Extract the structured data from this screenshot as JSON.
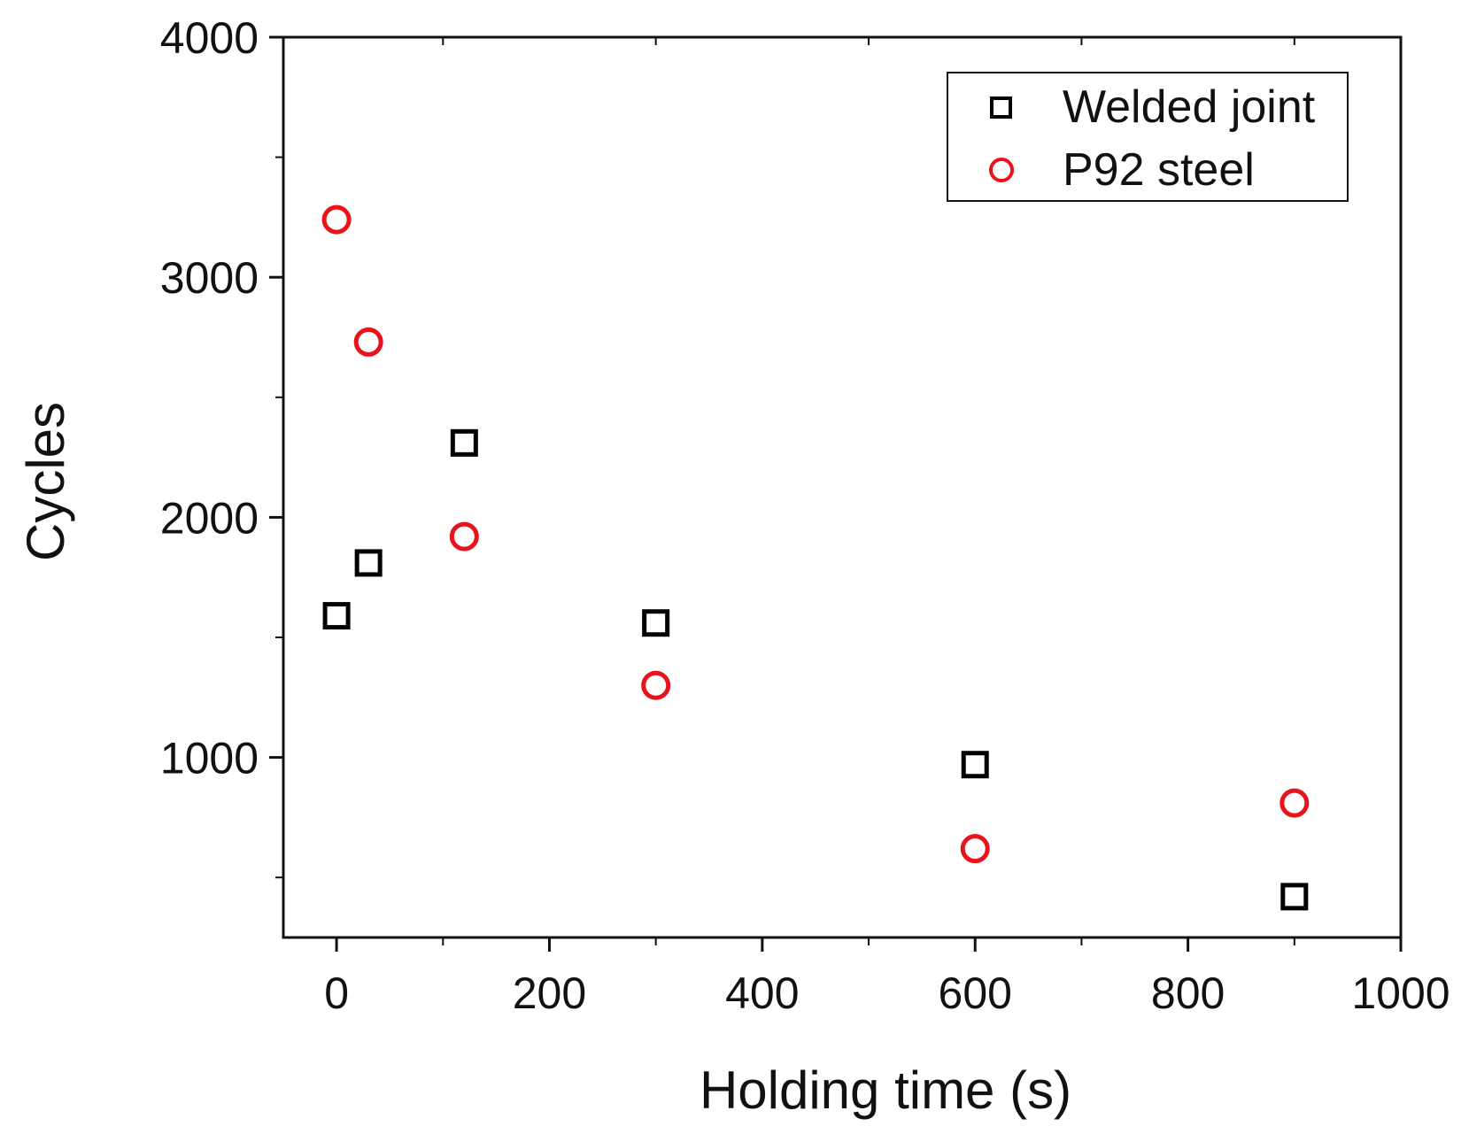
{
  "chart_data": {
    "type": "scatter",
    "title": "",
    "xlabel": "Holding time (s)",
    "ylabel": "Cycles",
    "xlim": [
      -50,
      1000
    ],
    "ylim": [
      250,
      4000
    ],
    "x_major_ticks": [
      0,
      200,
      400,
      600,
      800,
      1000
    ],
    "x_minor_ticks": [
      100,
      300,
      500,
      700,
      900
    ],
    "y_major_ticks": [
      1000,
      2000,
      3000,
      4000
    ],
    "y_minor_ticks": [
      500,
      1500,
      2500,
      3500
    ],
    "grid": false,
    "legend_position": "top-right",
    "series": [
      {
        "name": "Welded joint",
        "marker": "square",
        "color": "#000000",
        "points": [
          {
            "x": 0,
            "y": 1590
          },
          {
            "x": 30,
            "y": 1810
          },
          {
            "x": 120,
            "y": 2310
          },
          {
            "x": 300,
            "y": 1560
          },
          {
            "x": 600,
            "y": 970
          },
          {
            "x": 900,
            "y": 420
          }
        ]
      },
      {
        "name": "P92 steel",
        "marker": "circle",
        "color": "#e8131b",
        "points": [
          {
            "x": 0,
            "y": 3240
          },
          {
            "x": 30,
            "y": 2730
          },
          {
            "x": 120,
            "y": 1920
          },
          {
            "x": 300,
            "y": 1300
          },
          {
            "x": 600,
            "y": 620
          },
          {
            "x": 900,
            "y": 810
          }
        ]
      }
    ]
  }
}
